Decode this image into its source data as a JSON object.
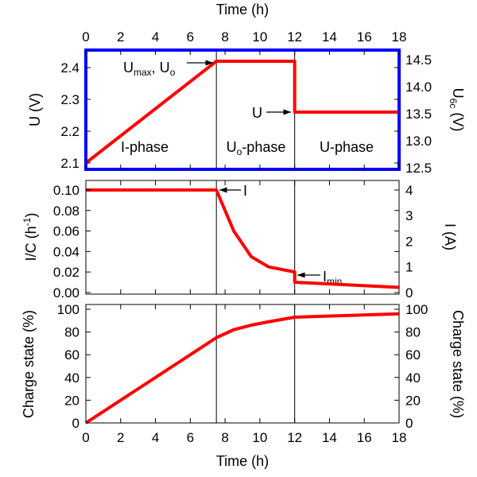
{
  "chart_data": {
    "type": "line",
    "x_axis": {
      "label": "Time (h)",
      "ticks": [
        "0",
        "2",
        "4",
        "6",
        "8",
        "10",
        "12",
        "14",
        "16",
        "18"
      ],
      "xlim": [
        0,
        18
      ]
    },
    "markers": [
      7.5,
      12
    ],
    "panels": [
      {
        "name": "voltage",
        "ylabel": "U (V)",
        "ylabel_right": {
          "main": "U",
          "sub": "6c",
          "rest": " (V)"
        },
        "ylim": [
          2.08,
          2.455
        ],
        "yticks": [
          "2.1",
          "2.2",
          "2.3",
          "2.4"
        ],
        "yticks_right": [
          "12.5",
          "13.0",
          "13.5",
          "14.0",
          "14.5"
        ],
        "ylim_right": [
          12.47,
          14.68
        ],
        "series": {
          "x": [
            0,
            7.5,
            12,
            12,
            18
          ],
          "y": [
            2.1,
            2.42,
            2.42,
            2.26,
            2.26
          ]
        },
        "phase_labels": [
          {
            "main": "I-phase",
            "x": 3.4
          },
          {
            "main": "U",
            "sub": "o",
            "rest": "-phase",
            "x": 9.75
          },
          {
            "main": "U-phase",
            "x": 15.0
          }
        ],
        "annotations": {
          "umax": {
            "a": "U",
            "b": "max",
            "c": ", U",
            "d": "o"
          },
          "u": "U"
        },
        "border_color": "#0000ff"
      },
      {
        "name": "current",
        "ylabel": {
          "main": "I/C (h",
          "sup": "-1",
          "rest": ")"
        },
        "ylabel_right": "I (A)",
        "ylim": [
          -0.0016,
          0.1093
        ],
        "yticks": [
          "0.00",
          "0.02",
          "0.04",
          "0.06",
          "0.08",
          "0.10"
        ],
        "yticks_right": [
          "0",
          "1",
          "2",
          "3",
          "4"
        ],
        "ylim_right": [
          -0.062,
          4.37
        ],
        "series": {
          "x": [
            0,
            7.5,
            8.5,
            9.5,
            10.5,
            12,
            12,
            18
          ],
          "y": [
            0.1,
            0.1,
            0.06,
            0.035,
            0.025,
            0.02,
            0.01,
            0.005
          ]
        },
        "annotations": {
          "i": "I",
          "imin": {
            "a": "I",
            "b": "min"
          }
        }
      },
      {
        "name": "charge",
        "ylabel": "Charge state (%)",
        "ylabel_right": "Charge state (%)",
        "ylim": [
          0,
          104.2
        ],
        "yticks": [
          "0",
          "20",
          "40",
          "60",
          "80",
          "100"
        ],
        "yticks_right": [
          "0",
          "20",
          "40",
          "60",
          "80",
          "100"
        ],
        "ylim_right": [
          0,
          104.2
        ],
        "series": {
          "x": [
            0,
            7.5,
            8.5,
            9.5,
            10.5,
            12,
            18
          ],
          "y": [
            0,
            75,
            82,
            86,
            89,
            93,
            96
          ]
        }
      }
    ],
    "line_color": "#ff0000"
  }
}
